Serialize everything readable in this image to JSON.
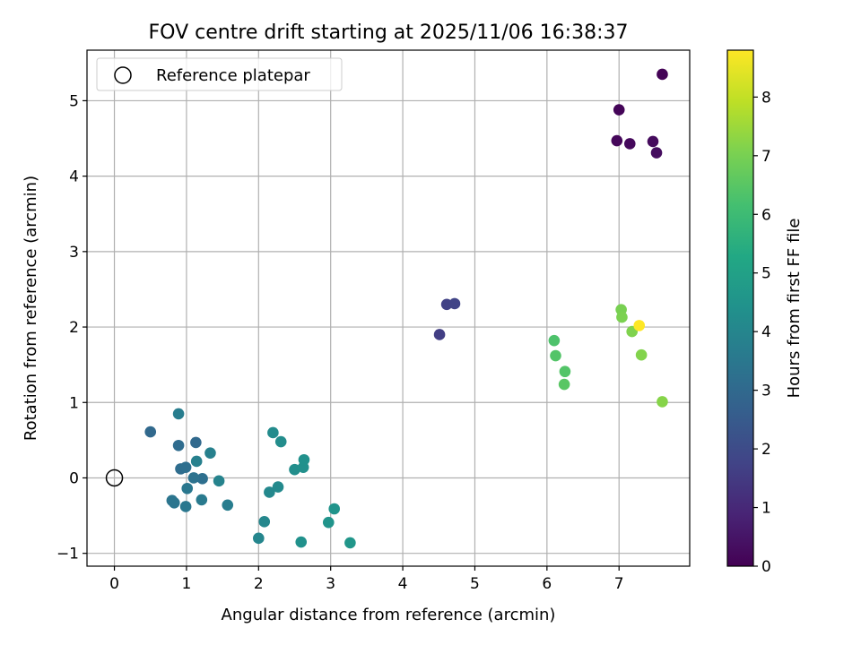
{
  "chart_data": {
    "type": "scatter",
    "title": "FOV centre drift starting at 2025/11/06 16:38:37",
    "xlabel": "Angular distance from reference (arcmin)",
    "ylabel": "Rotation from reference (arcmin)",
    "xlim": [
      -0.38,
      7.98
    ],
    "ylim": [
      -1.17,
      5.67
    ],
    "xticks": [
      0,
      1,
      2,
      3,
      4,
      5,
      6,
      7
    ],
    "yticks": [
      -1,
      0,
      1,
      2,
      3,
      4,
      5
    ],
    "grid": true,
    "legend": {
      "placement": "top-left",
      "entries": [
        "Reference platepar"
      ]
    },
    "reference_point": {
      "x": 0,
      "y": 0
    },
    "colorbar": {
      "label": "Hours from first FF file",
      "range": [
        0,
        8.8
      ],
      "ticks": [
        0,
        1,
        2,
        3,
        4,
        5,
        6,
        7,
        8
      ],
      "colormap": "viridis"
    },
    "points": [
      {
        "x": 7.6,
        "y": 5.35,
        "c": 0.05
      },
      {
        "x": 7.0,
        "y": 4.88,
        "c": 0.1
      },
      {
        "x": 6.97,
        "y": 4.47,
        "c": 0.15
      },
      {
        "x": 7.15,
        "y": 4.43,
        "c": 0.2
      },
      {
        "x": 7.47,
        "y": 4.46,
        "c": 0.25
      },
      {
        "x": 7.52,
        "y": 4.31,
        "c": 0.3
      },
      {
        "x": 4.51,
        "y": 1.9,
        "c": 1.6
      },
      {
        "x": 4.61,
        "y": 2.3,
        "c": 1.7
      },
      {
        "x": 4.72,
        "y": 2.31,
        "c": 1.75
      },
      {
        "x": 0.5,
        "y": 0.61,
        "c": 3.0
      },
      {
        "x": 1.13,
        "y": 0.47,
        "c": 3.0
      },
      {
        "x": 0.89,
        "y": 0.43,
        "c": 3.1
      },
      {
        "x": 0.92,
        "y": 0.12,
        "c": 3.15
      },
      {
        "x": 0.99,
        "y": 0.14,
        "c": 3.2
      },
      {
        "x": 1.22,
        "y": -0.01,
        "c": 3.2
      },
      {
        "x": 1.1,
        "y": 0.0,
        "c": 3.3
      },
      {
        "x": 0.8,
        "y": -0.3,
        "c": 3.4
      },
      {
        "x": 0.83,
        "y": -0.33,
        "c": 3.4
      },
      {
        "x": 1.01,
        "y": -0.14,
        "c": 3.5
      },
      {
        "x": 0.99,
        "y": -0.38,
        "c": 3.5
      },
      {
        "x": 1.21,
        "y": -0.29,
        "c": 3.6
      },
      {
        "x": 1.57,
        "y": -0.36,
        "c": 3.7
      },
      {
        "x": 0.89,
        "y": 0.85,
        "c": 3.7
      },
      {
        "x": 1.14,
        "y": 0.22,
        "c": 3.8
      },
      {
        "x": 1.33,
        "y": 0.33,
        "c": 3.8
      },
      {
        "x": 1.45,
        "y": -0.04,
        "c": 3.9
      },
      {
        "x": 2.0,
        "y": -0.8,
        "c": 4.0
      },
      {
        "x": 2.08,
        "y": -0.58,
        "c": 4.05
      },
      {
        "x": 2.15,
        "y": -0.19,
        "c": 4.1
      },
      {
        "x": 2.27,
        "y": -0.12,
        "c": 4.15
      },
      {
        "x": 2.2,
        "y": 0.6,
        "c": 4.2
      },
      {
        "x": 2.31,
        "y": 0.48,
        "c": 4.25
      },
      {
        "x": 2.5,
        "y": 0.11,
        "c": 4.3
      },
      {
        "x": 2.62,
        "y": 0.14,
        "c": 4.35
      },
      {
        "x": 2.63,
        "y": 0.24,
        "c": 4.4
      },
      {
        "x": 2.59,
        "y": -0.85,
        "c": 4.4
      },
      {
        "x": 2.97,
        "y": -0.59,
        "c": 4.5
      },
      {
        "x": 3.05,
        "y": -0.41,
        "c": 4.5
      },
      {
        "x": 3.27,
        "y": -0.86,
        "c": 4.6
      },
      {
        "x": 6.1,
        "y": 1.82,
        "c": 6.3
      },
      {
        "x": 6.12,
        "y": 1.62,
        "c": 6.4
      },
      {
        "x": 6.25,
        "y": 1.41,
        "c": 6.4
      },
      {
        "x": 6.24,
        "y": 1.24,
        "c": 6.5
      },
      {
        "x": 7.03,
        "y": 2.23,
        "c": 7.0
      },
      {
        "x": 7.04,
        "y": 2.13,
        "c": 7.05
      },
      {
        "x": 7.18,
        "y": 1.94,
        "c": 7.1
      },
      {
        "x": 7.31,
        "y": 1.63,
        "c": 7.15
      },
      {
        "x": 7.6,
        "y": 1.01,
        "c": 7.2
      },
      {
        "x": 7.28,
        "y": 2.02,
        "c": 8.8
      }
    ]
  }
}
